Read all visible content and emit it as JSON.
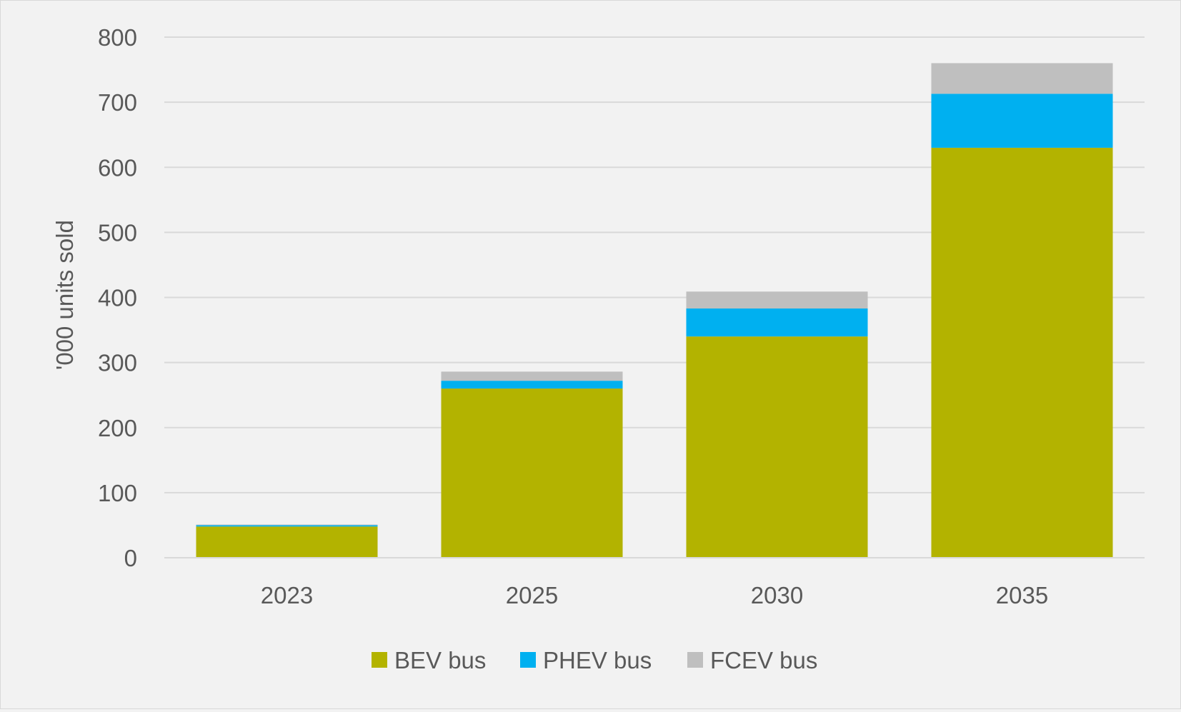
{
  "chart_data": {
    "type": "bar",
    "stacked": true,
    "categories": [
      "2023",
      "2025",
      "2030",
      "2035"
    ],
    "series": [
      {
        "name": "BEV bus",
        "color": "#b3b300",
        "values": [
          48,
          260,
          340,
          630
        ]
      },
      {
        "name": "PHEV bus",
        "color": "#00b0f0",
        "values": [
          2,
          12,
          43,
          83
        ]
      },
      {
        "name": "FCEV bus",
        "color": "#bfbfbf",
        "values": [
          1,
          14,
          26,
          47
        ]
      }
    ],
    "title": "",
    "xlabel": "",
    "ylabel": "'000 units sold",
    "ylim": [
      0,
      800
    ],
    "yticks": [
      "0",
      "100",
      "200",
      "300",
      "400",
      "500",
      "600",
      "700",
      "800"
    ],
    "grid": true,
    "legend_position": "bottom"
  }
}
